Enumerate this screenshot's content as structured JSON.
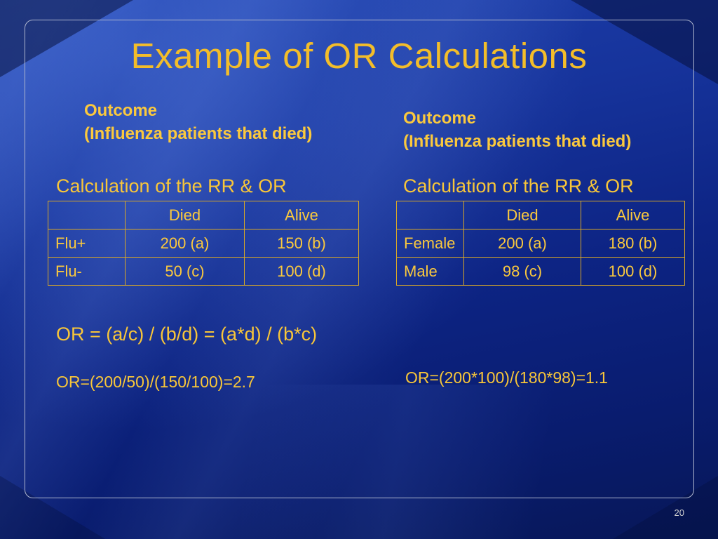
{
  "slide": {
    "title": "Example of OR Calculations",
    "page_number": "20"
  },
  "colors": {
    "background_top": "#1e41ad",
    "background_bottom": "#071757",
    "accent_text": "#f8c639",
    "table_border": "#d9a826",
    "frame_border": "#aeb6ce",
    "page_number_color": "#cfcfcf"
  },
  "left_panel": {
    "outcome_title": "Outcome",
    "outcome_subtitle": "(Influenza patients that died)",
    "section_heading": "Calculation of the RR & OR",
    "table": {
      "headers": [
        "",
        "Died",
        "Alive"
      ],
      "rows": [
        [
          "Flu+",
          "200 (a)",
          "150 (b)"
        ],
        [
          "Flu-",
          "50 (c)",
          "100 (d)"
        ]
      ]
    },
    "formula": "OR = (a/c) / (b/d) = (a*d) / (b*c)",
    "calculation": "OR=(200/50)/(150/100)=2.7"
  },
  "right_panel": {
    "outcome_title": "Outcome",
    "outcome_subtitle": "(Influenza patients that died)",
    "section_heading": "Calculation of the RR & OR",
    "table": {
      "headers": [
        "",
        "Died",
        "Alive"
      ],
      "rows": [
        [
          "Female",
          "200 (a)",
          "180 (b)"
        ],
        [
          "Male",
          "98 (c)",
          "100 (d)"
        ]
      ]
    },
    "calculation": "OR=(200*100)/(180*98)=1.1"
  }
}
